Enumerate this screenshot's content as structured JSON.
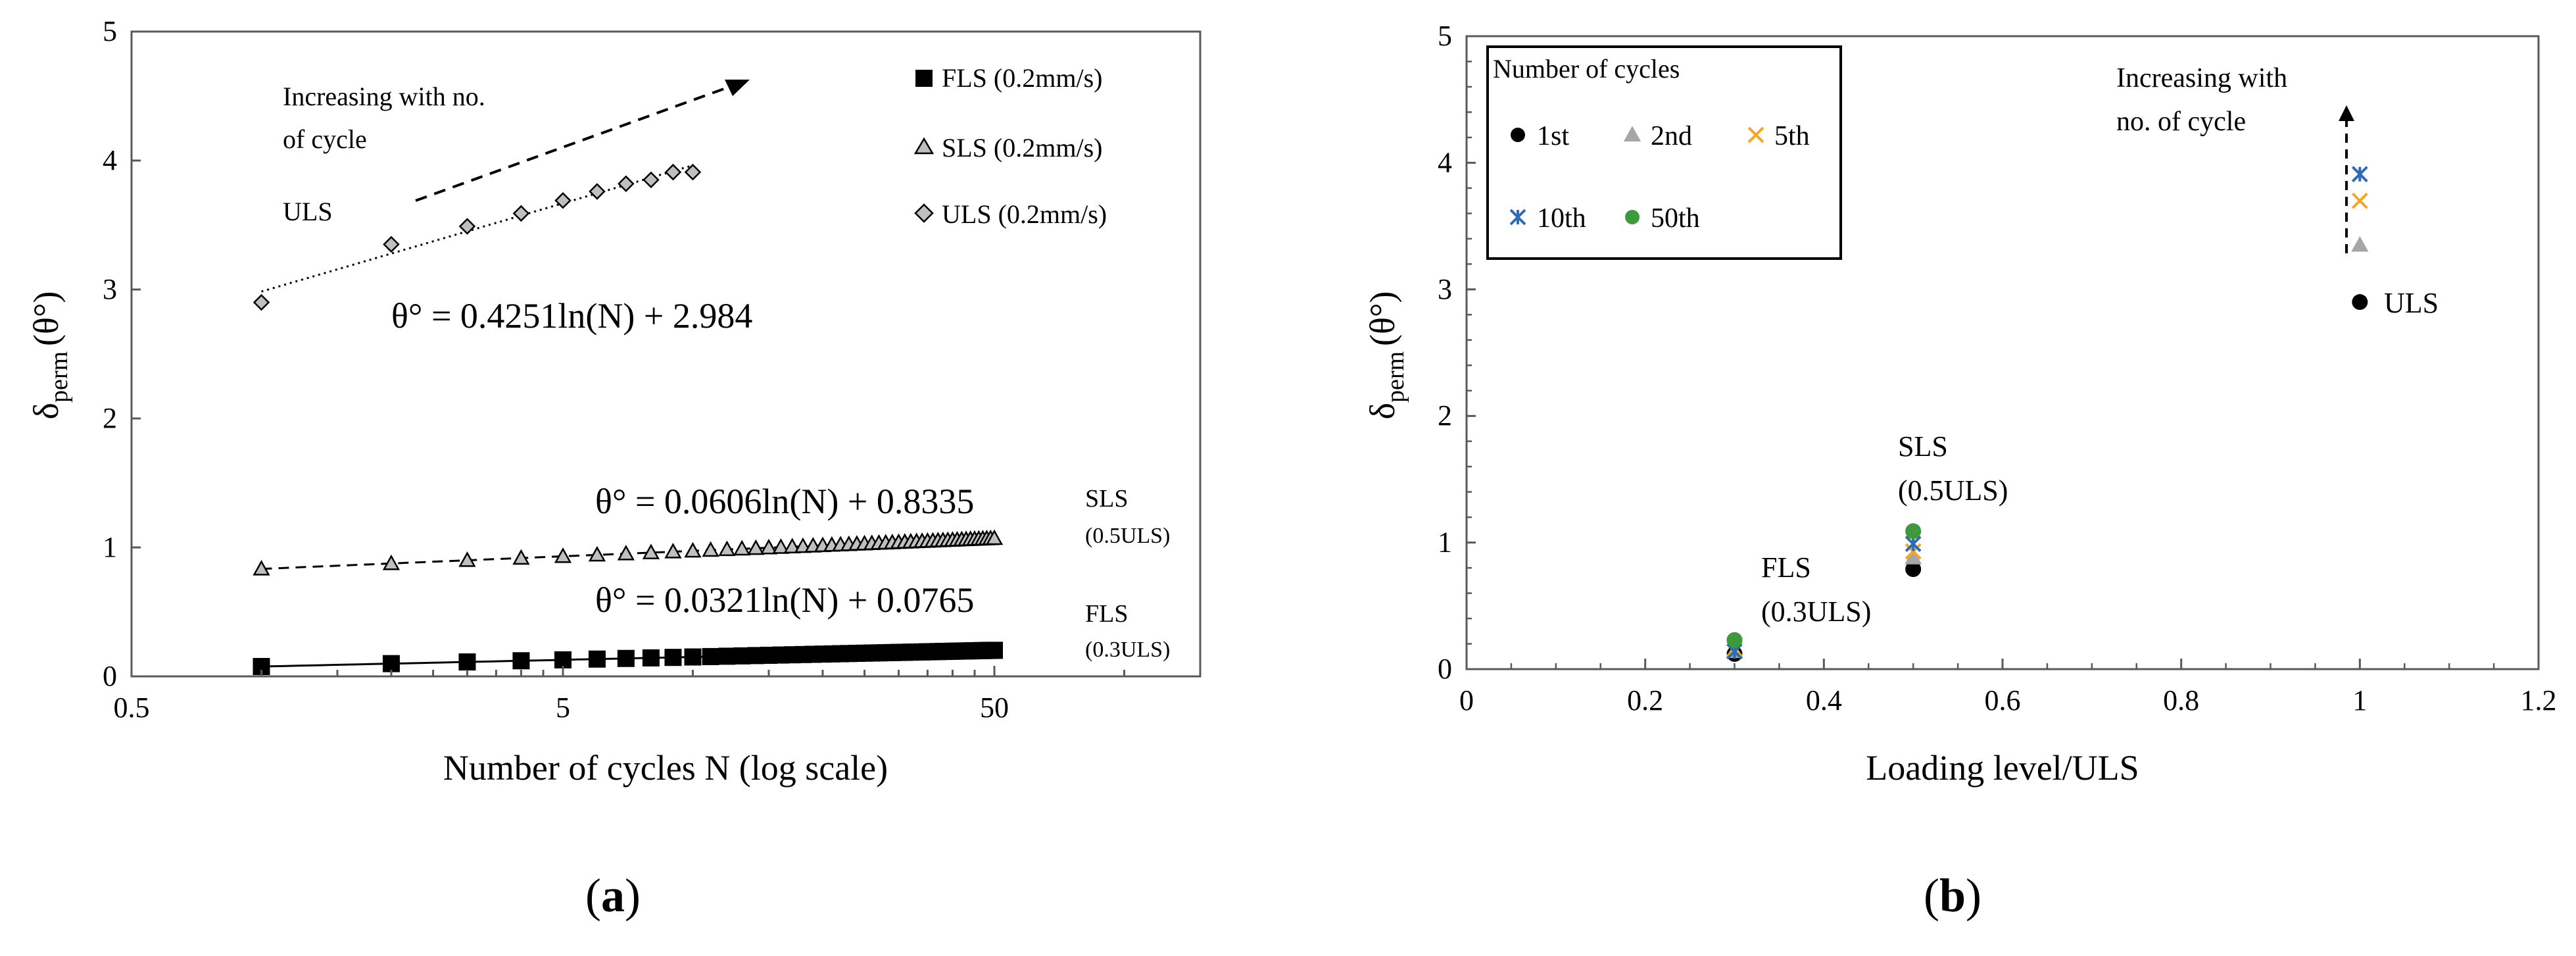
{
  "panel_labels": {
    "a": "a",
    "b": "b"
  },
  "chart_data": [
    {
      "id": "a",
      "type": "scatter",
      "x_scale": "log",
      "xlabel": "Number of cycles N (log scale)",
      "ylabel_main": "δ",
      "ylabel_sub": "perm",
      "ylabel_tail": "(θ°)",
      "xlim": [
        0.5,
        150
      ],
      "ylim": [
        0,
        5
      ],
      "x_ticks": [
        {
          "v": 0.5,
          "label": "0.5"
        },
        {
          "v": 5,
          "label": "5"
        },
        {
          "v": 50,
          "label": "50"
        }
      ],
      "y_ticks": [
        0,
        1,
        2,
        3,
        4,
        5
      ],
      "legend": [
        "FLS (0.2mm/s)",
        "SLS (0.2mm/s)",
        "ULS (0.2mm/s)"
      ],
      "series": [
        {
          "name": "FLS (0.2mm/s)",
          "marker": "square",
          "color": "#000000",
          "x_range": [
            1,
            50
          ],
          "fit": {
            "a": 0.0321,
            "b": 0.0765,
            "style": "solid"
          },
          "values_fn": "y = 0.0321 ln(N) + 0.0765"
        },
        {
          "name": "SLS (0.2mm/s)",
          "marker": "triangle",
          "color": "#999999",
          "x_range": [
            1,
            50
          ],
          "fit": {
            "a": 0.0606,
            "b": 0.8335,
            "style": "dashed"
          },
          "values_fn": "y = 0.0606 ln(N) + 0.8335"
        },
        {
          "name": "ULS (0.2mm/s)",
          "marker": "diamond",
          "color": "#999999",
          "x": [
            1,
            2,
            3,
            4,
            5,
            6,
            7,
            8,
            9,
            10
          ],
          "y": [
            2.9,
            3.35,
            3.49,
            3.59,
            3.69,
            3.76,
            3.82,
            3.85,
            3.91,
            3.91
          ],
          "fit": {
            "a": 0.4251,
            "b": 2.984,
            "style": "dotted"
          }
        }
      ],
      "annotations": {
        "increasing": [
          "Increasing with no.",
          "of cycle"
        ],
        "uls": "ULS",
        "eq_uls": "θ° = 0.4251ln(N)  + 2.984",
        "eq_sls": "θ° = 0.0606ln(N)  + 0.8335",
        "eq_fls": "θ° = 0.0321ln(N)  + 0.0765",
        "sls_tag": [
          "SLS",
          "(0.5ULS)"
        ],
        "fls_tag": [
          "FLS",
          "(0.3ULS)"
        ]
      }
    },
    {
      "id": "b",
      "type": "scatter",
      "xlabel": "Loading level/ULS",
      "ylabel_main": "δ",
      "ylabel_sub": "perm",
      "ylabel_tail": "(θ°)",
      "xlim": [
        0,
        1.2
      ],
      "ylim": [
        0,
        5
      ],
      "x_ticks": [
        "0",
        "0.2",
        "0.4",
        "0.6",
        "0.8",
        "1",
        "1.2"
      ],
      "y_ticks": [
        0,
        1,
        2,
        3,
        4,
        5
      ],
      "legend_title": "Number of cycles",
      "series": [
        {
          "name": "1st",
          "marker": "circle",
          "color": "#000000",
          "x": [
            0.3,
            0.5,
            1.0
          ],
          "y": [
            0.12,
            0.79,
            2.9
          ]
        },
        {
          "name": "2nd",
          "marker": "triangle",
          "color": "#a6a6a6",
          "x": [
            0.3,
            0.5,
            1.0
          ],
          "y": [
            0.14,
            0.88,
            3.35
          ]
        },
        {
          "name": "5th",
          "marker": "x",
          "color": "#f5a623",
          "x": [
            0.3,
            0.5,
            1.0
          ],
          "y": [
            0.16,
            0.93,
            3.7
          ]
        },
        {
          "name": "10th",
          "marker": "star",
          "color": "#2e6bb5",
          "x": [
            0.3,
            0.5,
            1.0
          ],
          "y": [
            0.14,
            0.99,
            3.91
          ]
        },
        {
          "name": "50th",
          "marker": "circle",
          "color": "#3c9a3c",
          "x": [
            0.3,
            0.5
          ],
          "y": [
            0.23,
            1.09
          ]
        }
      ],
      "annotations": {
        "increasing": [
          "Increasing  with",
          "no. of cycle"
        ],
        "uls": "ULS",
        "sls": [
          "SLS",
          "(0.5ULS)"
        ],
        "fls": [
          "FLS",
          "(0.3ULS)"
        ]
      }
    }
  ]
}
